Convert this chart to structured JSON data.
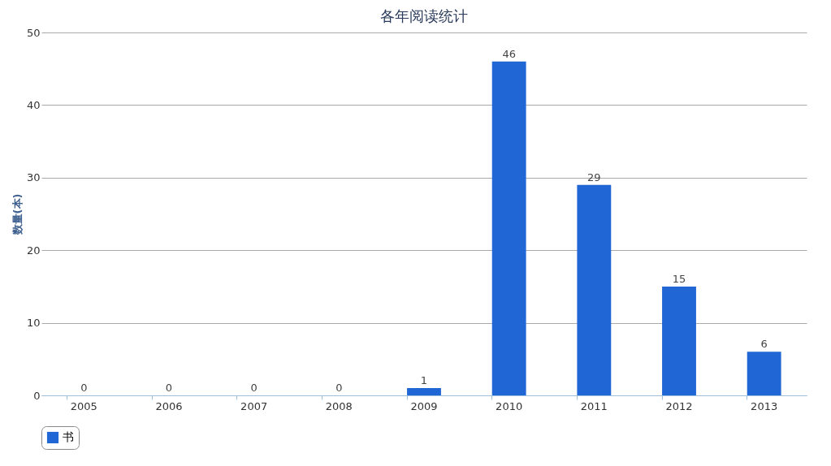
{
  "chart_data": {
    "type": "bar",
    "title": "各年阅读统计",
    "ylabel": "数量(本)",
    "categories": [
      "2005",
      "2006",
      "2007",
      "2008",
      "2009",
      "2010",
      "2011",
      "2012",
      "2013"
    ],
    "series": [
      {
        "name": "书",
        "color": "#2166d5",
        "values": [
          0,
          0,
          0,
          0,
          1,
          46,
          29,
          15,
          6
        ]
      }
    ],
    "ylim": [
      0,
      50
    ],
    "yticks": [
      0,
      10,
      20,
      30,
      40,
      50
    ],
    "grid": "y",
    "legend": "bottom",
    "data_labels": true
  }
}
